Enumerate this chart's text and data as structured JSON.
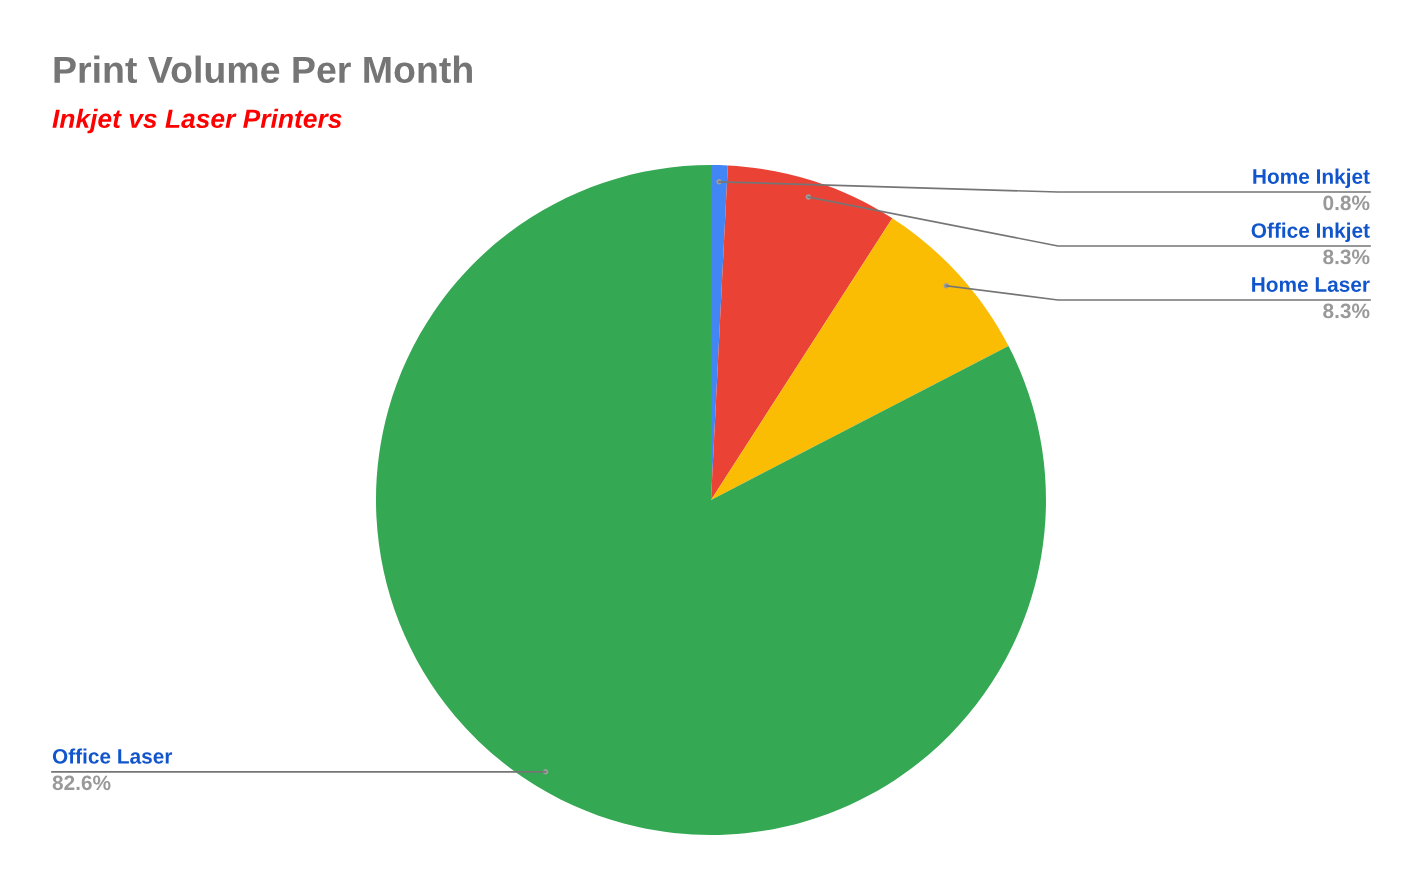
{
  "chart_data": {
    "type": "pie",
    "title": "Print Volume Per Month",
    "subtitle": "Inkjet vs Laser Printers",
    "categories": [
      "Home Inkjet",
      "Office Inkjet",
      "Home Laser",
      "Office Laser"
    ],
    "values": [
      0.8,
      8.3,
      8.3,
      82.6
    ],
    "value_labels": [
      "0.8%",
      "8.3%",
      "8.3%",
      "82.6%"
    ],
    "colors": [
      "#4285f4",
      "#ea4335",
      "#fbbc04",
      "#34a853"
    ],
    "data_labels": true,
    "legend": false
  }
}
